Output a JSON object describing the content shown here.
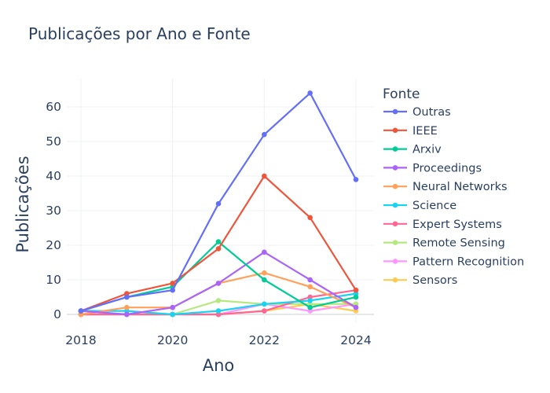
{
  "chart_data": {
    "type": "line",
    "title": "Publicações por Ano e Fonte",
    "xlabel": "Ano",
    "ylabel": "Publicações",
    "x": [
      2018,
      2019,
      2020,
      2021,
      2022,
      2023,
      2024
    ],
    "x_ticks": [
      "2018",
      "2020",
      "2022",
      "2024"
    ],
    "y_ticks": [
      "0",
      "10",
      "20",
      "30",
      "40",
      "50",
      "60"
    ],
    "xlim": [
      2018,
      2024
    ],
    "ylim": [
      0,
      65
    ],
    "grid": true,
    "legend_title": "Fonte",
    "legend_position": "right",
    "series": [
      {
        "name": "Outras",
        "color": "#636efa",
        "values": [
          1,
          5,
          7,
          32,
          52,
          64,
          39
        ]
      },
      {
        "name": "IEEE",
        "color": "#EF553B",
        "values": [
          1,
          6,
          9,
          19,
          40,
          28,
          7
        ]
      },
      {
        "name": "Arxiv",
        "color": "#00cc96",
        "values": [
          1,
          5,
          8,
          21,
          10,
          2,
          5
        ]
      },
      {
        "name": "Proceedings",
        "color": "#ab63fa",
        "values": [
          1,
          0,
          2,
          9,
          18,
          10,
          2
        ]
      },
      {
        "name": "Neural Networks",
        "color": "#FFA15A",
        "values": [
          0,
          2,
          2,
          9,
          12,
          8,
          2
        ]
      },
      {
        "name": "Science",
        "color": "#19d3f3",
        "values": [
          1,
          1,
          0,
          1,
          3,
          4,
          6
        ]
      },
      {
        "name": "Expert Systems",
        "color": "#FF6692",
        "values": [
          0,
          0,
          0,
          0,
          1,
          5,
          7
        ]
      },
      {
        "name": "Remote Sensing",
        "color": "#B6E880",
        "values": [
          0,
          0,
          0,
          4,
          3,
          3,
          3
        ]
      },
      {
        "name": "Pattern Recognition",
        "color": "#FF97FF",
        "values": [
          0,
          0,
          0,
          0,
          3,
          1,
          3
        ]
      },
      {
        "name": "Sensors",
        "color": "#FECB52",
        "values": [
          0,
          0,
          0,
          0,
          1,
          3,
          1
        ]
      }
    ]
  }
}
